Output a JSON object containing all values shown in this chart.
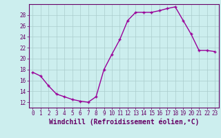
{
  "x": [
    0,
    1,
    2,
    3,
    4,
    5,
    6,
    7,
    8,
    9,
    10,
    11,
    12,
    13,
    14,
    15,
    16,
    17,
    18,
    19,
    20,
    21,
    22,
    23
  ],
  "y": [
    17.5,
    16.8,
    15.0,
    13.5,
    13.0,
    12.5,
    12.2,
    12.0,
    13.0,
    18.0,
    20.8,
    23.5,
    27.0,
    28.5,
    28.5,
    28.5,
    28.8,
    29.2,
    29.5,
    27.0,
    24.5,
    21.5,
    21.5,
    21.3
  ],
  "line_color": "#990099",
  "marker": "+",
  "marker_size": 3,
  "marker_linewidth": 1.0,
  "background_color": "#cceeee",
  "grid_color": "#aacccc",
  "xlabel": "Windchill (Refroidissement éolien,°C)",
  "xlabel_fontsize": 7,
  "ylabel_ticks": [
    12,
    14,
    16,
    18,
    20,
    22,
    24,
    26,
    28
  ],
  "ylim": [
    11,
    30
  ],
  "xlim": [
    -0.5,
    23.5
  ],
  "xtick_labels": [
    "0",
    "1",
    "2",
    "3",
    "4",
    "5",
    "6",
    "7",
    "8",
    "9",
    "10",
    "11",
    "12",
    "13",
    "14",
    "15",
    "16",
    "17",
    "18",
    "19",
    "20",
    "21",
    "22",
    "23"
  ],
  "tick_color": "#660066",
  "tick_fontsize": 5.5,
  "spine_color": "#660066",
  "line_width": 1.0
}
